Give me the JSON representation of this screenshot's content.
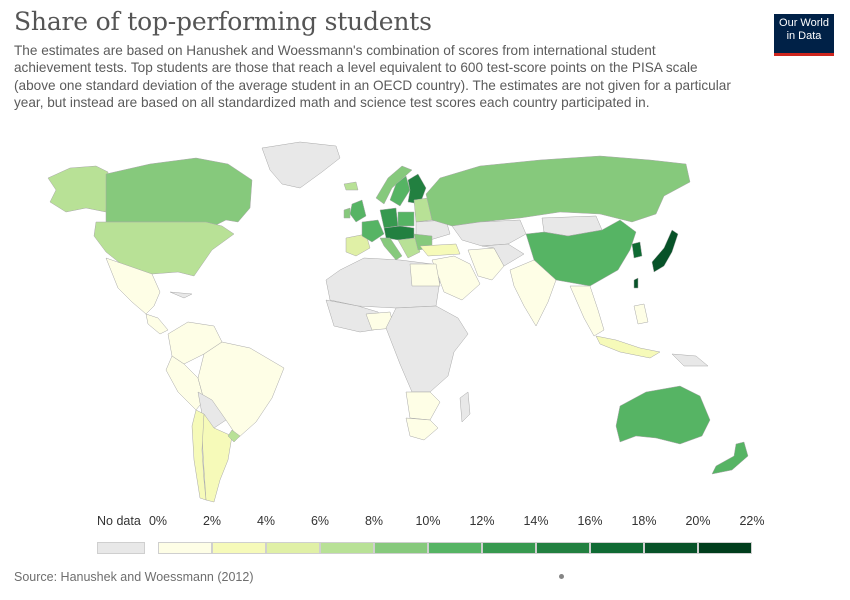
{
  "header": {
    "title": "Share of top-performing students",
    "subtitle": "The estimates are based on Hanushek and Woessmann's combination of scores from international student achievement tests. Top students are those that reach a level equivalent to 600 test-score points on the PISA scale (above one standard deviation of the average student in an OECD country). The estimates are not given for a particular year, but instead are based on all standardized math and science test scores each country participated in."
  },
  "logo": {
    "line1": "Our World",
    "line2": "in Data"
  },
  "legend": {
    "no_data_label": "No data",
    "ticks": [
      "0%",
      "2%",
      "4%",
      "6%",
      "8%",
      "10%",
      "12%",
      "14%",
      "16%",
      "18%",
      "20%",
      "22%"
    ],
    "no_data_color": "#e8e8e8",
    "bin_colors": [
      "#fefee6",
      "#f6fab9",
      "#e0f0a6",
      "#b8e196",
      "#86c97c",
      "#56b464",
      "#37994f",
      "#228040",
      "#0f6a33",
      "#075228",
      "#003d1c"
    ]
  },
  "footer": {
    "source": "Source: Hanushek and Woessmann (2012)"
  }
}
